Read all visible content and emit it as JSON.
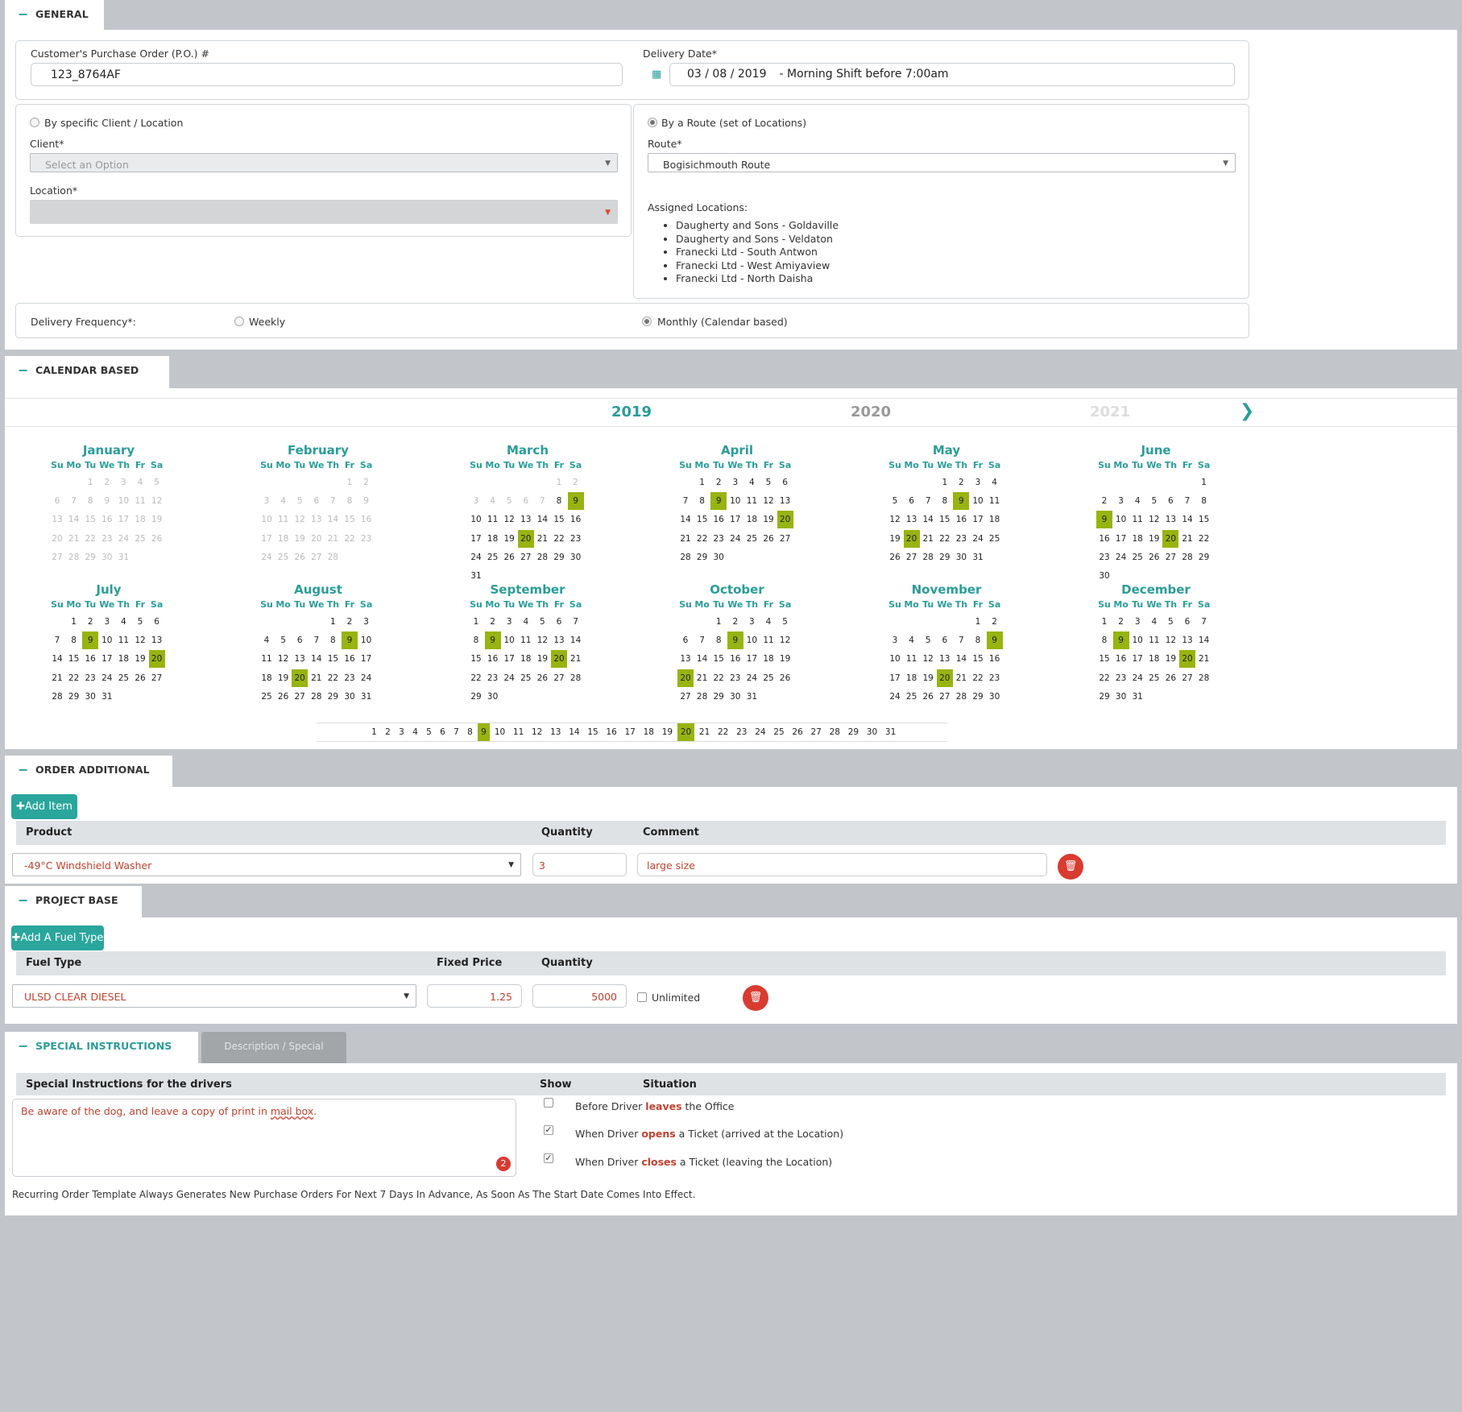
{
  "general": {
    "tab": "GENERAL INFO",
    "po_label": "Customer's Purchase Order (P.O.) #",
    "po_value": "123_8764AF",
    "date_label": "Delivery Date*",
    "date_value": "03 / 08 / 2019",
    "shift": "- Morning Shift before 7:00am"
  },
  "client": {
    "radio_label": "By specific Client / Location",
    "client_label": "Client*",
    "client_placeholder": "Select an Option",
    "location_label": "Location*"
  },
  "route": {
    "radio_label": "By a Route (set of Locations)",
    "route_label": "Route*",
    "route_value": "Bogisichmouth Route",
    "assigned_label": "Assigned Locations:",
    "locations": [
      "Daugherty and Sons - Goldaville",
      "Daugherty and Sons - Veldaton",
      "Franecki Ltd - South Antwon",
      "Franecki Ltd - West Amiyaview",
      "Franecki Ltd - North Daisha"
    ]
  },
  "frequency": {
    "label": "Delivery Frequency*:",
    "weekly": "Weekly",
    "monthly": "Monthly (Calendar based)"
  },
  "calendar": {
    "tab": "CALENDAR BASED FREQUENCY",
    "years": [
      "2019",
      "2020",
      "2021"
    ],
    "days_header": [
      "Su",
      "Mo",
      "Tu",
      "We",
      "Th",
      "Fr",
      "Sa"
    ],
    "selected_days": [
      9,
      20
    ],
    "months": [
      "January",
      "February",
      "March",
      "April",
      "May",
      "June",
      "July",
      "August",
      "September",
      "October",
      "November",
      "December"
    ],
    "month_start_days": [
      2,
      5,
      5,
      1,
      3,
      6,
      1,
      4,
      0,
      2,
      5,
      0
    ],
    "month_lengths": [
      31,
      28,
      31,
      30,
      31,
      30,
      31,
      31,
      30,
      31,
      30,
      31
    ],
    "disabled_months": [
      0,
      1
    ],
    "disabled_until": {
      "month": 2,
      "day": 7
    }
  },
  "products": {
    "tab": "ORDER ADDITIONAL PRODUCTS",
    "add_btn": "Add Item",
    "col_product": "Product",
    "col_quantity": "Quantity",
    "col_comment": "Comment",
    "product": "-49°C Windshield Washer",
    "quantity": "3",
    "comment": "large size"
  },
  "pricing": {
    "tab": "PROJECT BASE PRICING",
    "add_btn": "Add A Fuel Type",
    "col_fuel": "Fuel Type",
    "col_price": "Fixed Price",
    "col_quantity": "Quantity",
    "fuel": "ULSD CLEAR DIESEL",
    "price": "1.25",
    "quantity": "5000",
    "unlimited": "Unlimited"
  },
  "instructions": {
    "tab": "SPECIAL INSTRUCTIONS FOR DRIVERS",
    "tab2": "Description / Special Instructions",
    "col_instr": "Special Instructions for the drivers",
    "col_show": "Show",
    "col_situation": "Situation",
    "text_a": "Be aware of the dog, and leave a copy of print in ",
    "text_b": "mail box",
    "text_c": ".",
    "badge": "2",
    "situations": [
      {
        "pre": "Before Driver ",
        "em": "leaves",
        "post": " the Office",
        "checked": false
      },
      {
        "pre": "When Driver ",
        "em": "opens",
        "post": " a Ticket (arrived at the Location)",
        "checked": true
      },
      {
        "pre": "When Driver ",
        "em": "closes",
        "post": " a Ticket (leaving the Location)",
        "checked": true
      }
    ],
    "footer": "Recurring Order Template Always Generates New Purchase Orders For Next 7 Days In Advance, As Soon As The Start Date Comes Into Effect."
  },
  "colors": {
    "teal": "#2a9d99",
    "highlight": "#97b410",
    "danger": "#d93b30",
    "accent_text": "#c0422f"
  }
}
